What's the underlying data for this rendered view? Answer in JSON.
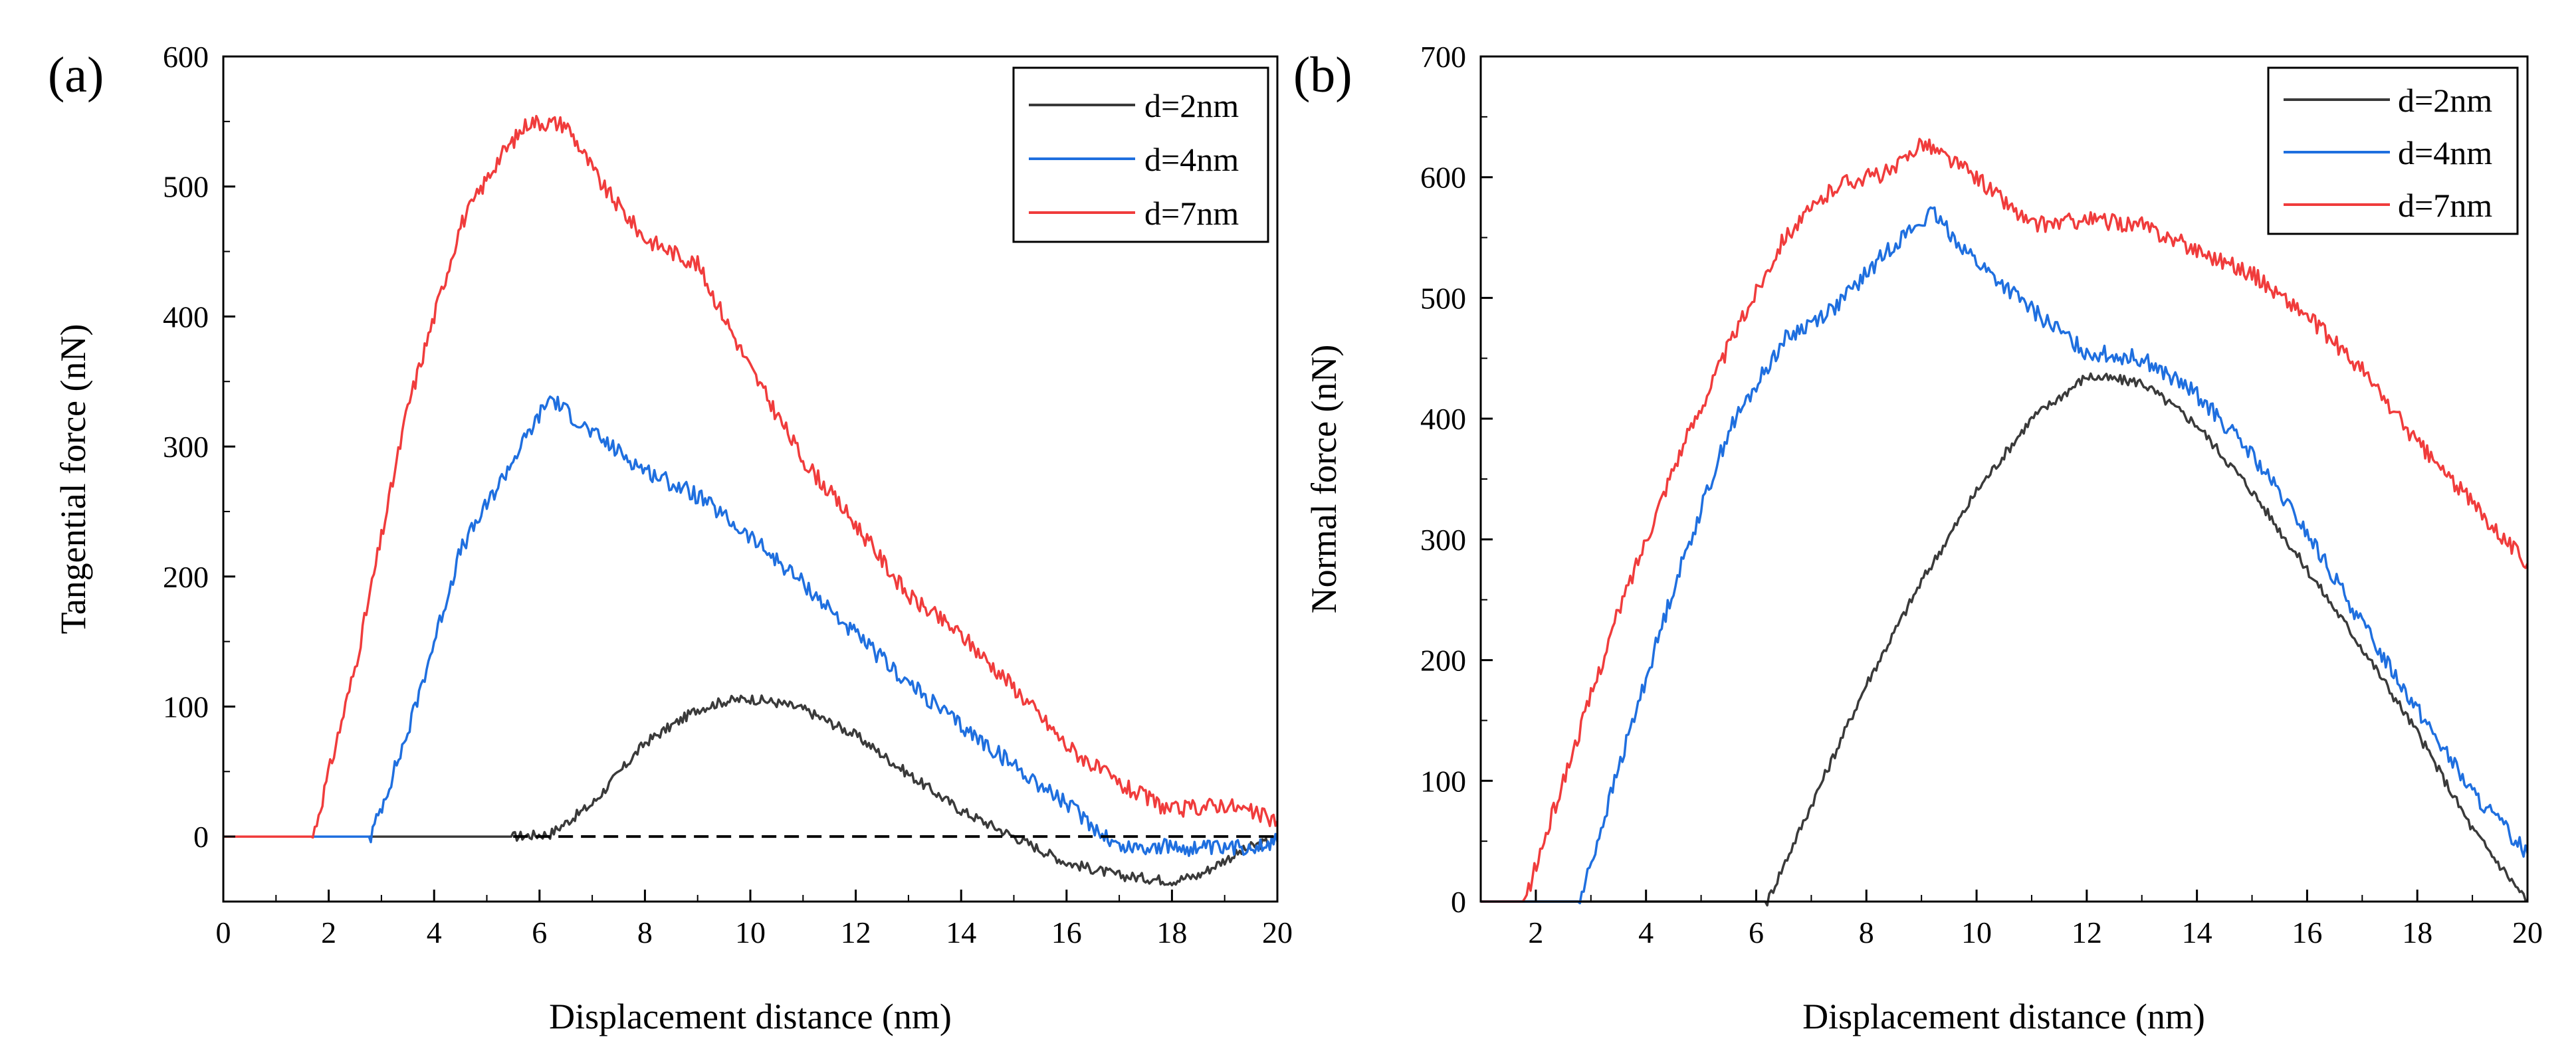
{
  "chart_data": [
    {
      "panel_label": "(a)",
      "type": "line",
      "title": "",
      "xlabel": "Displacement distance (nm)",
      "ylabel": "Tangential force (nN)",
      "xlim": [
        0,
        20
      ],
      "ylim": [
        -50,
        600
      ],
      "xticks": [
        0,
        2,
        4,
        6,
        8,
        10,
        12,
        14,
        16,
        18,
        20
      ],
      "yticks": [
        0,
        100,
        200,
        300,
        400,
        500,
        600
      ],
      "xtick_labels": [
        "0",
        "2",
        "4",
        "6",
        "8",
        "10",
        "12",
        "14",
        "16",
        "18",
        "20"
      ],
      "ytick_labels": [
        "0",
        "100",
        "200",
        "300",
        "400",
        "500",
        "600"
      ],
      "grid": false,
      "legend_position": "top-right",
      "reference_line": {
        "y": 0,
        "x_start": 5.5,
        "x_end": 20,
        "style": "dashed",
        "color": "#000000"
      },
      "series": [
        {
          "name": "d=2nm",
          "color": "#3a3a3a",
          "x": [
            0,
            5.5,
            6.2,
            7,
            8,
            9,
            9.5,
            10,
            10.5,
            11,
            12,
            13,
            14,
            15,
            16,
            17,
            18,
            18.5,
            19,
            19.5,
            20
          ],
          "y": [
            0,
            0,
            2,
            25,
            72,
            98,
            104,
            106,
            103,
            98,
            78,
            48,
            20,
            0,
            -20,
            -30,
            -34,
            -30,
            -18,
            -8,
            -2
          ]
        },
        {
          "name": "d=4nm",
          "color": "#1f6fdf",
          "x": [
            0,
            2.8,
            3.5,
            4.5,
            5.5,
            6.2,
            7,
            8,
            9,
            10,
            11,
            12,
            13,
            14,
            15,
            16,
            17,
            18,
            19,
            20
          ],
          "y": [
            0,
            0,
            80,
            220,
            290,
            338,
            310,
            282,
            262,
            230,
            195,
            155,
            118,
            85,
            55,
            25,
            -8,
            -8,
            -10,
            -4
          ]
        },
        {
          "name": "d=7nm",
          "color": "#f03c3c",
          "x": [
            0,
            1.7,
            2.5,
            3.5,
            4.5,
            5.2,
            5.8,
            6.5,
            7.2,
            8,
            9,
            10,
            11,
            12,
            13,
            14,
            15,
            16,
            17,
            18,
            19,
            20
          ],
          "y": [
            0,
            0,
            130,
            330,
            470,
            520,
            550,
            548,
            500,
            460,
            440,
            360,
            290,
            240,
            185,
            155,
            115,
            70,
            40,
            20,
            25,
            12
          ]
        }
      ]
    },
    {
      "panel_label": "(b)",
      "type": "line",
      "title": "",
      "xlabel": "Displacement distance (nm)",
      "ylabel": "Normal force (nN)",
      "xlim": [
        1,
        20
      ],
      "ylim": [
        0,
        700
      ],
      "xticks": [
        2,
        4,
        6,
        8,
        10,
        12,
        14,
        16,
        18,
        20
      ],
      "yticks": [
        0,
        100,
        200,
        300,
        400,
        500,
        600,
        700
      ],
      "xtick_labels": [
        "2",
        "4",
        "6",
        "8",
        "10",
        "12",
        "14",
        "16",
        "18",
        "20"
      ],
      "ytick_labels": [
        "0",
        "100",
        "200",
        "300",
        "400",
        "500",
        "600",
        "700"
      ],
      "grid": false,
      "legend_position": "top-right",
      "series": [
        {
          "name": "d=2nm",
          "color": "#3a3a3a",
          "x": [
            1,
            6.2,
            7,
            8,
            9,
            10,
            11,
            12,
            13,
            14,
            15,
            16,
            17,
            18,
            19,
            20
          ],
          "y": [
            0,
            0,
            80,
            180,
            265,
            340,
            400,
            435,
            430,
            395,
            340,
            275,
            210,
            140,
            60,
            0
          ]
        },
        {
          "name": "d=4nm",
          "color": "#1f6fdf",
          "x": [
            1,
            2.8,
            3.5,
            4.5,
            5.5,
            6.5,
            7.5,
            8.5,
            9.2,
            10,
            11,
            12,
            13,
            14,
            15,
            16,
            17,
            18,
            19,
            20
          ],
          "y": [
            0,
            0,
            110,
            260,
            390,
            465,
            495,
            545,
            570,
            530,
            490,
            455,
            450,
            420,
            370,
            305,
            230,
            160,
            90,
            40
          ]
        },
        {
          "name": "d=7nm",
          "color": "#f03c3c",
          "x": [
            1,
            1.8,
            2.5,
            3.5,
            4.5,
            5.5,
            6.5,
            7.5,
            8.5,
            9,
            10,
            11,
            12,
            13,
            14,
            15,
            16,
            17,
            18,
            19,
            20
          ],
          "y": [
            0,
            0,
            100,
            240,
            360,
            460,
            550,
            595,
            605,
            630,
            600,
            560,
            565,
            560,
            540,
            520,
            485,
            440,
            380,
            330,
            280
          ]
        }
      ]
    }
  ]
}
